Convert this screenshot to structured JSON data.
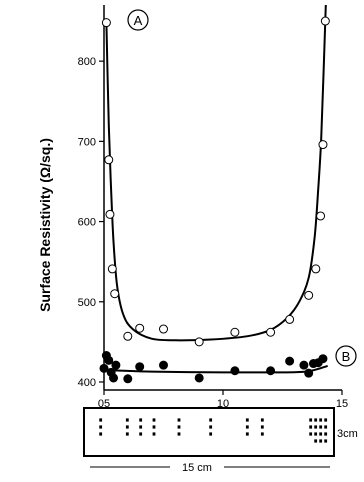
{
  "chart_data": {
    "type": "scatter",
    "ylabel": "Surface Resistivity (Ω/sq.)",
    "xlabel": "",
    "xlim": [
      5,
      15
    ],
    "ylim": [
      390,
      870
    ],
    "xticks": [
      {
        "value": 5,
        "label": "05"
      },
      {
        "value": 10,
        "label": "10"
      },
      {
        "value": 15,
        "label": "15"
      }
    ],
    "yticks": [
      {
        "value": 400,
        "label": "400"
      },
      {
        "value": 500,
        "label": "500"
      },
      {
        "value": 600,
        "label": "600"
      },
      {
        "value": 700,
        "label": "700"
      },
      {
        "value": 800,
        "label": "800"
      }
    ],
    "series": [
      {
        "name": "A",
        "marker": "open-circle",
        "x": [
          5.1,
          5.2,
          5.25,
          5.35,
          5.45,
          6.0,
          6.5,
          7.5,
          9.0,
          10.5,
          12.0,
          12.8,
          13.6,
          13.9,
          14.1,
          14.2,
          14.3
        ],
        "y": [
          848,
          677,
          609,
          541,
          510,
          457,
          467,
          466,
          450,
          462,
          462,
          478,
          508,
          541,
          607,
          696,
          850
        ],
        "fit_x": [
          5.1,
          5.2,
          5.3,
          5.4,
          5.55,
          5.8,
          6.2,
          7.0,
          8.0,
          9.5,
          11.0,
          12.0,
          12.7,
          13.2,
          13.6,
          13.85,
          14.0,
          14.12,
          14.22,
          14.32
        ],
        "fit_y": [
          848,
          720,
          640,
          575,
          520,
          485,
          466,
          454,
          452,
          453,
          457,
          465,
          480,
          500,
          530,
          580,
          640,
          700,
          780,
          870
        ]
      },
      {
        "name": "B",
        "marker": "filled-circle",
        "x": [
          5.0,
          5.1,
          5.2,
          5.3,
          5.4,
          5.5,
          6.0,
          6.5,
          7.5,
          9.0,
          10.5,
          12.0,
          12.8,
          13.4,
          13.6,
          13.8,
          14.0,
          14.2
        ],
        "y": [
          417,
          433,
          427,
          412,
          405,
          421,
          404,
          419,
          421,
          405,
          414,
          414,
          426,
          421,
          411,
          423,
          424,
          429
        ],
        "fit_x": [
          5.0,
          7.0,
          10.0,
          12.0,
          13.5,
          14.4
        ],
        "fit_y": [
          415,
          413,
          412,
          412,
          413,
          420
        ]
      }
    ],
    "diagram": {
      "width_label": "15 cm",
      "height_label": "3cm",
      "column_dots": [
        3,
        3,
        3,
        3,
        3,
        3,
        3,
        3,
        3,
        9
      ],
      "column_positions": [
        1.0,
        2.6,
        3.4,
        4.2,
        5.7,
        7.6,
        9.8,
        10.7,
        13.6,
        14.2
      ]
    }
  }
}
